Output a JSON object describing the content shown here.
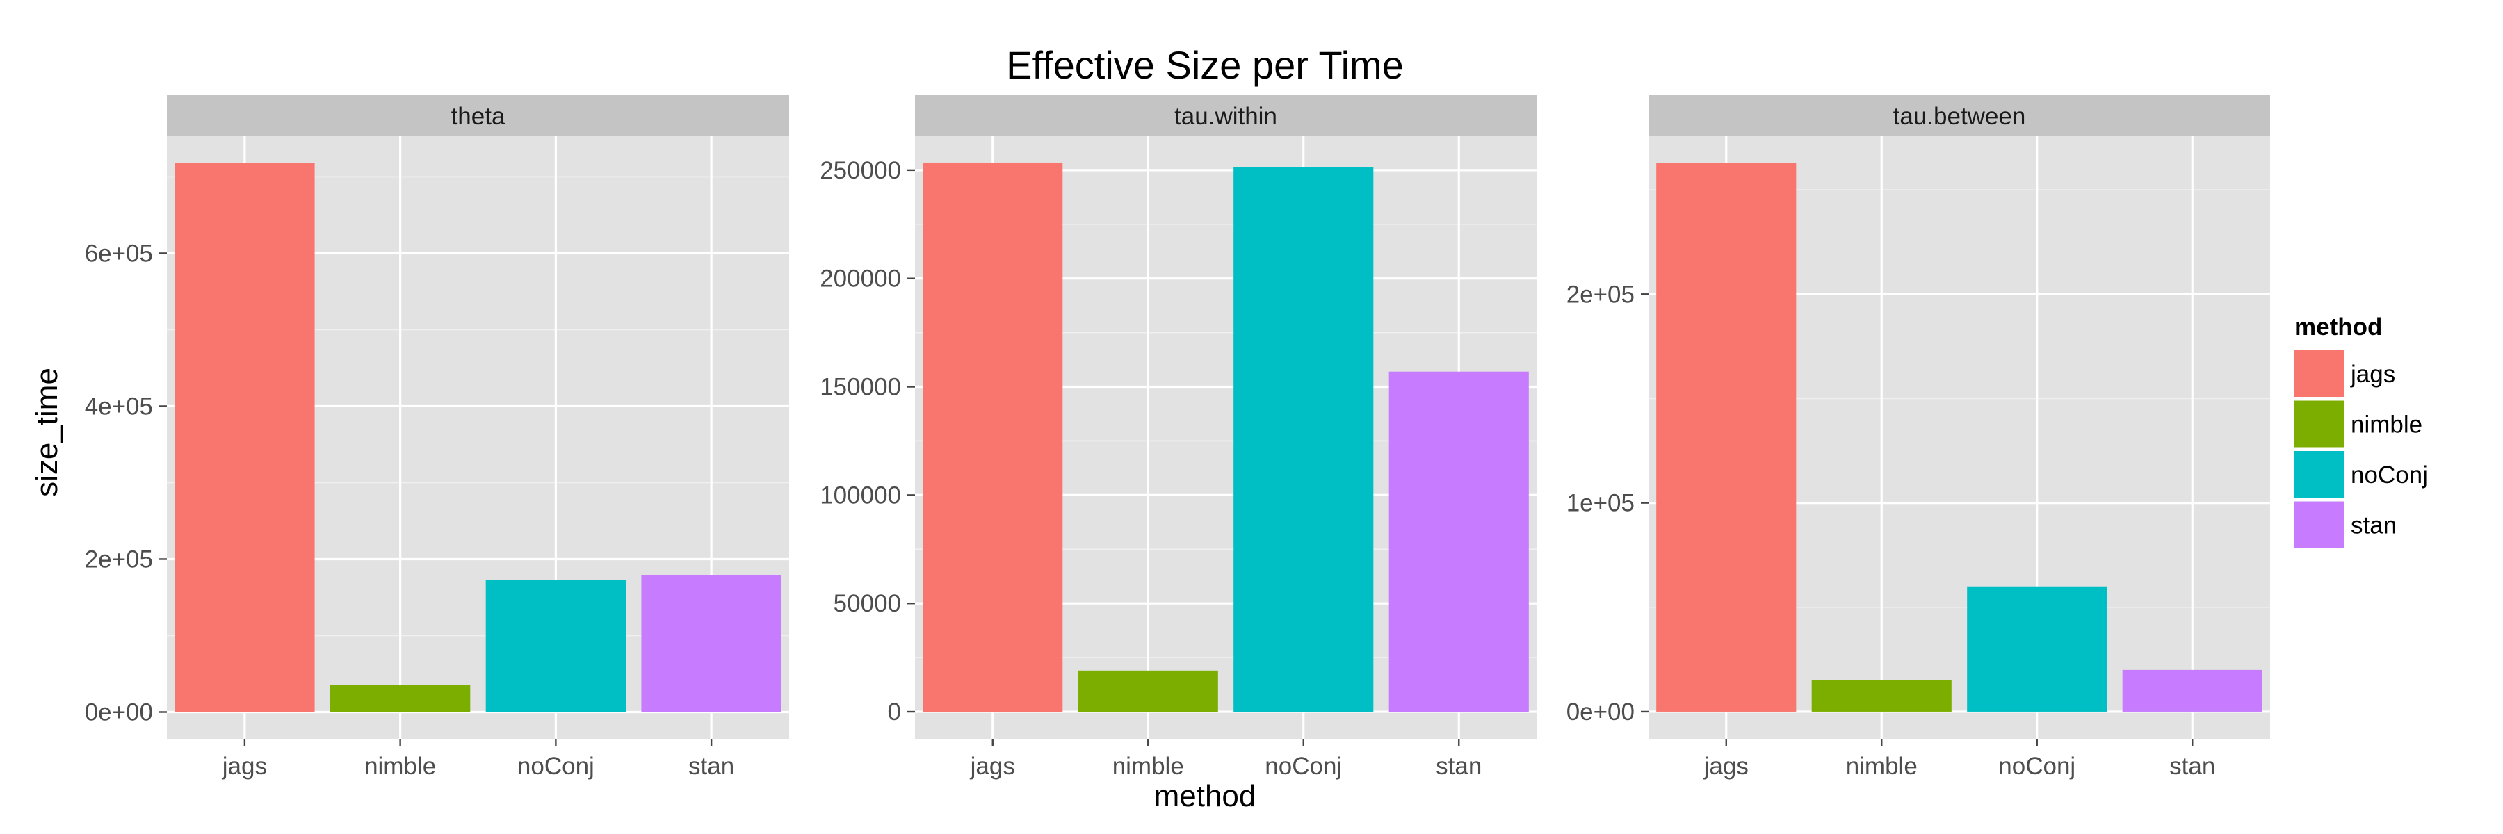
{
  "chart_data": {
    "type": "bar",
    "title": "Effective Size per Time",
    "xlabel": "method",
    "ylabel": "size_time",
    "categories": [
      "jags",
      "nimble",
      "noConj",
      "stan"
    ],
    "colors": {
      "jags": "#F8766D",
      "nimble": "#7CAE00",
      "noConj": "#00BFC4",
      "stan": "#C77CFF"
    },
    "legend": {
      "title": "method",
      "position": "right",
      "items": [
        {
          "label": "jags",
          "color": "#F8766D"
        },
        {
          "label": "nimble",
          "color": "#7CAE00"
        },
        {
          "label": "noConj",
          "color": "#00BFC4"
        },
        {
          "label": "stan",
          "color": "#C77CFF"
        }
      ]
    },
    "grid": true,
    "facets": [
      {
        "strip": "theta",
        "values": [
          718000,
          35000,
          173000,
          179000
        ],
        "ylim": [
          -35000,
          754000
        ],
        "yticks": [
          0,
          200000,
          400000,
          600000
        ],
        "ytick_labels": [
          "0e+00",
          "2e+05",
          "4e+05",
          "6e+05"
        ]
      },
      {
        "strip": "tau.within",
        "values": [
          253500,
          19000,
          251500,
          157000
        ],
        "ylim": [
          -12500,
          266000
        ],
        "yticks": [
          0,
          50000,
          100000,
          150000,
          200000,
          250000
        ],
        "ytick_labels": [
          "0",
          "50000",
          "100000",
          "150000",
          "200000",
          "250000"
        ]
      },
      {
        "strip": "tau.between",
        "values": [
          263000,
          15000,
          60000,
          20000
        ],
        "ylim": [
          -13000,
          276000
        ],
        "yticks": [
          0,
          100000,
          200000
        ],
        "ytick_labels": [
          "0e+00",
          "1e+05",
          "2e+05"
        ]
      }
    ]
  }
}
